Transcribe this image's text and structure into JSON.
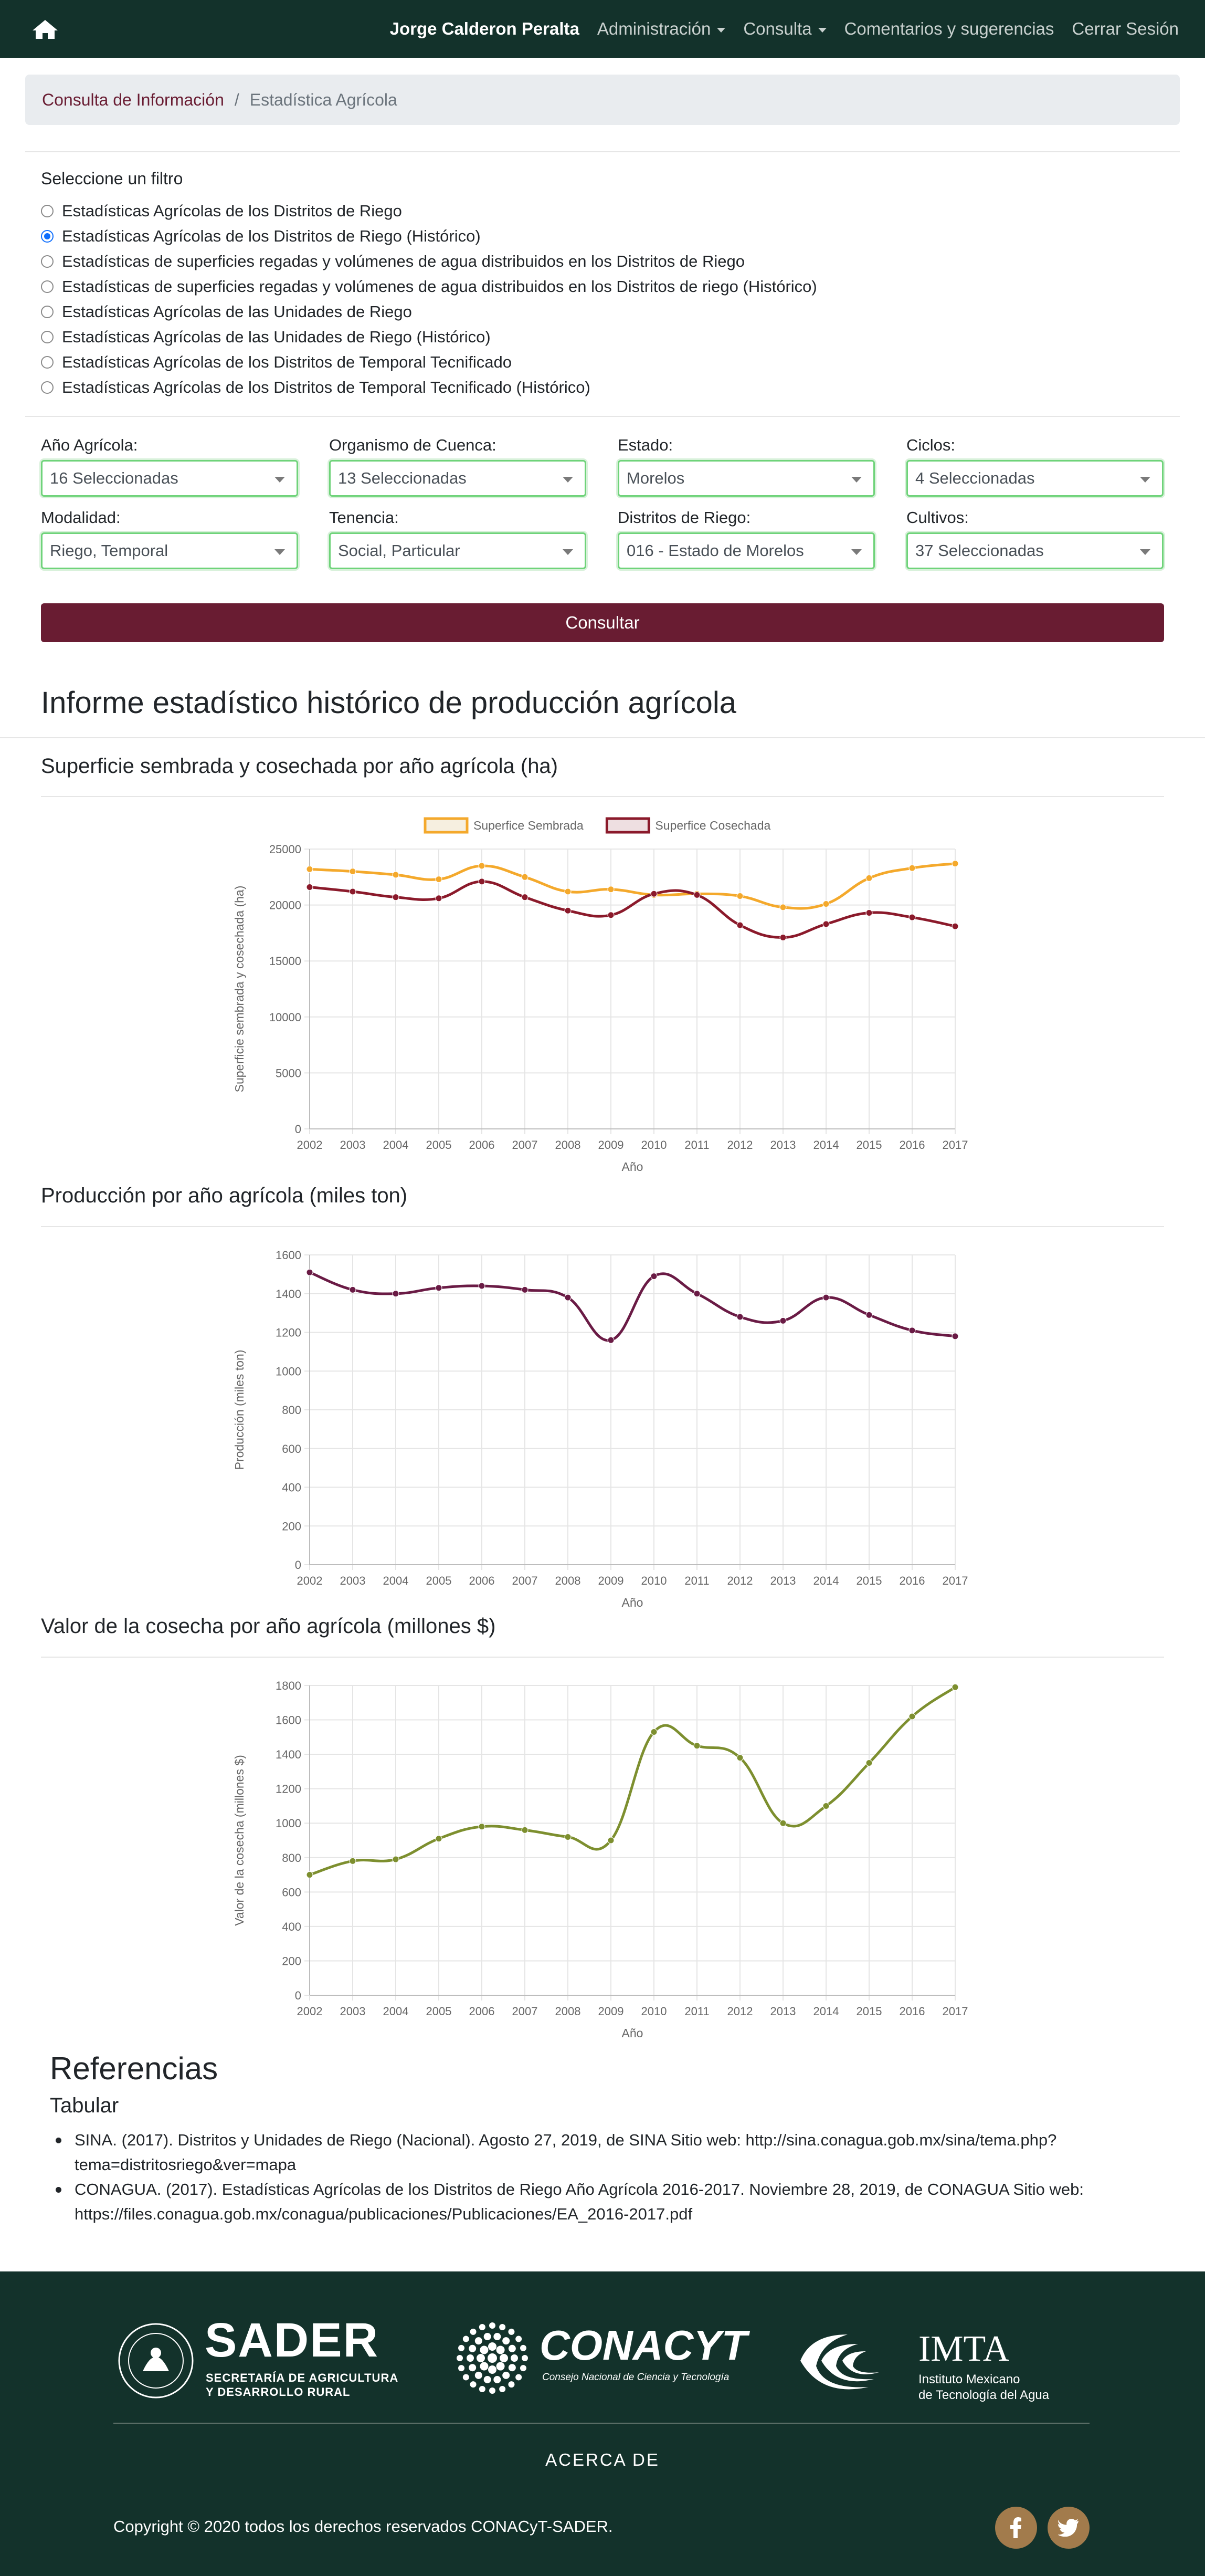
{
  "navbar": {
    "user": "Jorge Calderon Peralta",
    "items": [
      "Administración",
      "Consulta",
      "Comentarios y sugerencias",
      "Cerrar Sesión"
    ]
  },
  "breadcrumb": {
    "parent": "Consulta de Información",
    "current": "Estadística Agrícola"
  },
  "filters": {
    "title": "Seleccione un filtro",
    "options": [
      "Estadísticas Agrícolas de los Distritos de Riego",
      "Estadísticas Agrícolas de los Distritos de Riego (Histórico)",
      "Estadísticas de superficies regadas y volúmenes de agua distribuidos en los Distritos de Riego",
      "Estadísticas de superficies regadas y volúmenes de agua distribuidos en los Distritos de riego (Histórico)",
      "Estadísticas Agrícolas de las Unidades de Riego",
      "Estadísticas Agrícolas de las Unidades de Riego (Histórico)",
      "Estadísticas Agrícolas de los Distritos de Temporal Tecnificado",
      "Estadísticas Agrícolas de los Distritos de Temporal Tecnificado (Histórico)"
    ],
    "selected_index": 1
  },
  "selects": [
    {
      "label": "Año Agrícola:",
      "value": "16 Seleccionadas"
    },
    {
      "label": "Organismo de Cuenca:",
      "value": "13 Seleccionadas"
    },
    {
      "label": "Estado:",
      "value": "Morelos"
    },
    {
      "label": "Ciclos:",
      "value": "4 Seleccionadas"
    },
    {
      "label": "Modalidad:",
      "value": "Riego, Temporal"
    },
    {
      "label": "Tenencia:",
      "value": "Social, Particular"
    },
    {
      "label": "Distritos de Riego:",
      "value": "016 - Estado de Morelos"
    },
    {
      "label": "Cultivos:",
      "value": "37 Seleccionadas"
    }
  ],
  "consultar_label": "Consultar",
  "report_title": "Informe estadístico histórico de producción agrícola",
  "sections": [
    "Superficie sembrada y cosechada por año agrícola (ha)",
    "Producción por año agrícola (miles ton)",
    "Valor de la cosecha por año agrícola (millones $)"
  ],
  "chart_data": [
    {
      "type": "line",
      "x": [
        "2002",
        "2003",
        "2004",
        "2005",
        "2006",
        "2007",
        "2008",
        "2009",
        "2010",
        "2011",
        "2012",
        "2013",
        "2014",
        "2015",
        "2016",
        "2017"
      ],
      "series": [
        {
          "name": "Superfice Sembrada",
          "color": "#f4a92c",
          "values": [
            23200,
            23000,
            22700,
            22300,
            23500,
            22500,
            21200,
            21400,
            20900,
            21000,
            20800,
            19800,
            20100,
            22400,
            23300,
            23700
          ]
        },
        {
          "name": "Superfice Cosechada",
          "color": "#8b1a2b",
          "values": [
            21600,
            21200,
            20700,
            20600,
            22100,
            20700,
            19500,
            19100,
            21000,
            20900,
            18200,
            17100,
            18300,
            19300,
            18900,
            18100
          ]
        }
      ],
      "xlabel": "Año",
      "ylabel": "Superficie sembrada y cosechada (ha)",
      "ylim": [
        0,
        25000
      ],
      "yticks": [
        0,
        5000,
        10000,
        15000,
        20000,
        25000
      ],
      "legend": "top",
      "grid": true
    },
    {
      "type": "line",
      "x": [
        "2002",
        "2003",
        "2004",
        "2005",
        "2006",
        "2007",
        "2008",
        "2009",
        "2010",
        "2011",
        "2012",
        "2013",
        "2014",
        "2015",
        "2016",
        "2017"
      ],
      "series": [
        {
          "name": "",
          "color": "#6a1b45",
          "values": [
            1510,
            1420,
            1400,
            1430,
            1440,
            1420,
            1380,
            1160,
            1490,
            1400,
            1280,
            1260,
            1380,
            1290,
            1210,
            1180
          ]
        }
      ],
      "xlabel": "Año",
      "ylabel": "Producción (miles ton)",
      "ylim": [
        0,
        1600
      ],
      "yticks": [
        0,
        200,
        400,
        600,
        800,
        1000,
        1200,
        1400,
        1600
      ],
      "grid": true
    },
    {
      "type": "line",
      "x": [
        "2002",
        "2003",
        "2004",
        "2005",
        "2006",
        "2007",
        "2008",
        "2009",
        "2010",
        "2011",
        "2012",
        "2013",
        "2014",
        "2015",
        "2016",
        "2017"
      ],
      "series": [
        {
          "name": "",
          "color": "#7d8f2f",
          "values": [
            700,
            780,
            790,
            910,
            980,
            960,
            920,
            900,
            1530,
            1450,
            1380,
            1000,
            1100,
            1350,
            1620,
            1790
          ]
        }
      ],
      "xlabel": "Año",
      "ylabel": "Valor de la cosecha (millones $)",
      "ylim": [
        0,
        1800
      ],
      "yticks": [
        0,
        200,
        400,
        600,
        800,
        1000,
        1200,
        1400,
        1600,
        1800
      ],
      "grid": true
    }
  ],
  "references": {
    "title": "Referencias",
    "subtitle": "Tabular",
    "items": [
      "SINA. (2017). Distritos y Unidades de Riego (Nacional). Agosto 27, 2019, de SINA Sitio web: http://sina.conagua.gob.mx/sina/tema.php?tema=distritosriego&ver=mapa",
      "CONAGUA. (2017). Estadísticas Agrícolas de los Distritos de Riego Año Agrícola 2016-2017. Noviembre 28, 2019, de CONAGUA Sitio web: https://files.conagua.gob.mx/conagua/publicaciones/Publicaciones/EA_2016-2017.pdf"
    ]
  },
  "footer": {
    "sader": {
      "name": "SADER",
      "line1": "SECRETARÍA DE AGRICULTURA",
      "line2": "Y DESARROLLO RURAL"
    },
    "conacyt": {
      "name": "CONACYT",
      "line1": "Consejo Nacional de Ciencia y Tecnología"
    },
    "imta": {
      "name": "IMTA",
      "line1": "Instituto Mexicano",
      "line2": "de Tecnología del Agua"
    },
    "acerca": "ACERCA DE",
    "copyright": "Copyright © 2020 todos los derechos reservados CONACyT-SADER."
  },
  "icons": [
    "home-icon",
    "caret-down-icon",
    "facebook-icon",
    "twitter-icon"
  ],
  "colors": {
    "navbar": "#13322b",
    "accent": "#691c32",
    "social": "#a27b4c"
  }
}
